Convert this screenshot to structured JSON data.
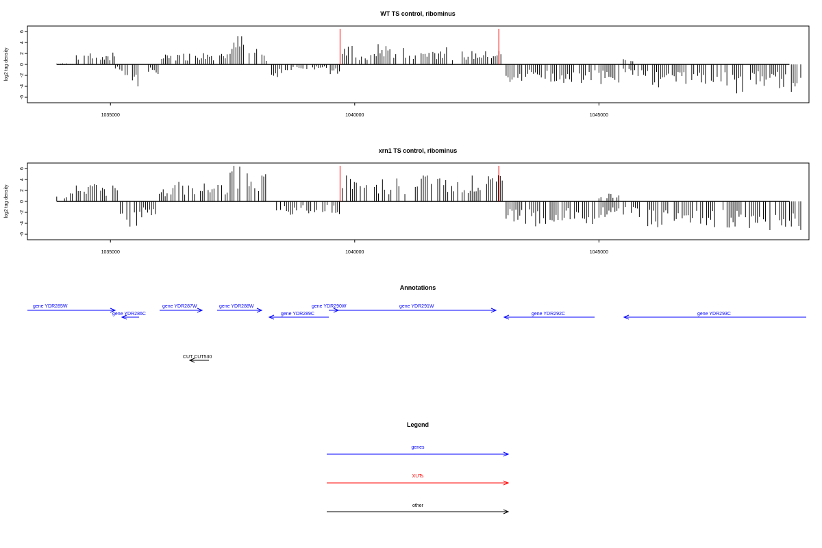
{
  "panels": [
    {
      "title": "WT TS control, ribominus",
      "ylabel": "log2 tag density",
      "yticks": [
        "6",
        "4",
        "2",
        "0",
        "-2",
        "-4",
        "-6"
      ],
      "xticks": [
        "1035000",
        "1040000",
        "1045000"
      ]
    },
    {
      "title": "xrn1 TS control, ribominus",
      "ylabel": "log2 tag density",
      "yticks": [
        "6",
        "4",
        "2",
        "0",
        "-2",
        "-4",
        "-6"
      ],
      "xticks": [
        "1035000",
        "1040000",
        "1045000"
      ]
    }
  ],
  "annotations": {
    "title": "Annotations",
    "genes": [
      {
        "label": "gene YDR285W",
        "strand": "+"
      },
      {
        "label": "gene YDR286C",
        "strand": "-"
      },
      {
        "label": "gene YDR287W",
        "strand": "+"
      },
      {
        "label": "gene YDR288W",
        "strand": "+"
      },
      {
        "label": "gene YDR289C",
        "strand": "-"
      },
      {
        "label": "gene YDR290W",
        "strand": "+"
      },
      {
        "label": "gene YDR291W",
        "strand": "+"
      },
      {
        "label": "gene YDR292C",
        "strand": "-"
      },
      {
        "label": "gene YDR293C",
        "strand": "-"
      }
    ],
    "other": [
      {
        "label": "CUT CUT530",
        "strand": "-"
      }
    ]
  },
  "legend": {
    "title": "Legend",
    "items": [
      {
        "label": "genes",
        "color": "#0000ff"
      },
      {
        "label": "XUTs",
        "color": "#ff0000"
      },
      {
        "label": "other",
        "color": "#000000"
      }
    ]
  },
  "colors": {
    "genes": "#0000ff",
    "xut": "#ff0000",
    "other": "#000000",
    "signal": "#000000"
  },
  "chart_data": [
    {
      "type": "bar",
      "title": "WT TS control, ribominus",
      "ylabel": "log2 tag density",
      "xlabel": "",
      "xlim": [
        1033300,
        1049300
      ],
      "ylim": [
        -7,
        7
      ],
      "xticks": [
        1035000,
        1040000,
        1045000
      ],
      "yticks": [
        6,
        4,
        2,
        0,
        -2,
        -4,
        -6
      ],
      "xut_markers": [
        1039700,
        1042950
      ],
      "signal": [
        [
          1033900,
          0.2,
          0
        ],
        [
          1034300,
          2.6,
          0
        ],
        [
          1034800,
          1.6,
          0
        ],
        [
          1035050,
          3.7,
          0
        ],
        [
          1035100,
          0,
          -1.2
        ],
        [
          1035300,
          0,
          -3.2
        ],
        [
          1035450,
          0,
          -4.8
        ],
        [
          1035700,
          0,
          -1.8
        ],
        [
          1036050,
          1.8,
          0
        ],
        [
          1036300,
          2.2,
          0
        ],
        [
          1036700,
          2.4,
          0
        ],
        [
          1037200,
          2.0,
          0
        ],
        [
          1037450,
          5.5,
          0
        ],
        [
          1037800,
          3.3,
          0
        ],
        [
          1038100,
          1.8,
          0
        ],
        [
          1038300,
          0,
          -2.5
        ],
        [
          1038700,
          0,
          -1.5
        ],
        [
          1039100,
          0,
          -1.0
        ],
        [
          1039500,
          0,
          -1.9
        ],
        [
          1039750,
          3.5,
          0
        ],
        [
          1040100,
          2.0,
          0
        ],
        [
          1040400,
          3.8,
          0
        ],
        [
          1040800,
          3.3,
          0
        ],
        [
          1041200,
          3.0,
          0
        ],
        [
          1041600,
          3.2,
          0
        ],
        [
          1042000,
          2.5,
          0
        ],
        [
          1042400,
          2.5,
          0
        ],
        [
          1042800,
          2.8,
          0
        ],
        [
          1043100,
          0,
          -3.8
        ],
        [
          1043500,
          0,
          -2.8
        ],
        [
          1043900,
          0,
          -3.3
        ],
        [
          1044200,
          0,
          -4.8
        ],
        [
          1044600,
          0,
          -3.5
        ],
        [
          1045000,
          0,
          -3.6
        ],
        [
          1045500,
          1.2,
          -2.0
        ],
        [
          1045800,
          0,
          -2.4
        ],
        [
          1046100,
          0,
          -4.2
        ],
        [
          1046500,
          0,
          -4.0
        ],
        [
          1046900,
          0,
          -4.4
        ],
        [
          1047300,
          0,
          -3.9
        ],
        [
          1047700,
          0,
          -5.6
        ],
        [
          1048100,
          0,
          -4.2
        ],
        [
          1048500,
          0,
          -4.5
        ],
        [
          1048900,
          0,
          -5.7
        ]
      ]
    },
    {
      "type": "bar",
      "title": "xrn1 TS control, ribominus",
      "ylabel": "log2 tag density",
      "xlabel": "",
      "xlim": [
        1033300,
        1049300
      ],
      "ylim": [
        -7,
        7
      ],
      "xticks": [
        1035000,
        1040000,
        1045000
      ],
      "yticks": [
        6,
        4,
        2,
        0,
        -2,
        -4,
        -6
      ],
      "xut_markers": [
        1039700,
        1042950
      ],
      "signal": [
        [
          1033900,
          1.5,
          0
        ],
        [
          1034300,
          3.5,
          0
        ],
        [
          1034800,
          2.8,
          0
        ],
        [
          1035050,
          3.3,
          0
        ],
        [
          1035200,
          0,
          -3.5
        ],
        [
          1035400,
          0,
          -5.2
        ],
        [
          1035600,
          0,
          -3.0
        ],
        [
          1036000,
          3.0,
          0
        ],
        [
          1036400,
          3.6,
          0
        ],
        [
          1036800,
          3.5,
          0
        ],
        [
          1037200,
          4.0,
          0
        ],
        [
          1037450,
          6.7,
          0
        ],
        [
          1037800,
          6.0,
          0
        ],
        [
          1038100,
          5.2,
          0
        ],
        [
          1038400,
          0,
          -2.5
        ],
        [
          1038900,
          0,
          -2.2
        ],
        [
          1039300,
          0,
          -2.0
        ],
        [
          1039500,
          0,
          -2.5
        ],
        [
          1039750,
          5.0,
          0
        ],
        [
          1040200,
          4.2,
          0
        ],
        [
          1040700,
          4.3,
          0
        ],
        [
          1041200,
          5.6,
          0
        ],
        [
          1041700,
          4.4,
          0
        ],
        [
          1042200,
          4.8,
          0
        ],
        [
          1042700,
          4.8,
          0
        ],
        [
          1043100,
          0,
          -4.0
        ],
        [
          1043500,
          0,
          -4.8
        ],
        [
          1044000,
          0,
          -4.0
        ],
        [
          1044500,
          0,
          -4.2
        ],
        [
          1045000,
          1.5,
          -3.4
        ],
        [
          1045500,
          0,
          -3.0
        ],
        [
          1046000,
          0,
          -4.8
        ],
        [
          1046500,
          0,
          -5.0
        ],
        [
          1047000,
          0,
          -5.5
        ],
        [
          1047500,
          0,
          -5.0
        ],
        [
          1048000,
          0,
          -6.0
        ],
        [
          1048500,
          0,
          -6.0
        ],
        [
          1048900,
          0,
          -5.3
        ]
      ]
    }
  ]
}
